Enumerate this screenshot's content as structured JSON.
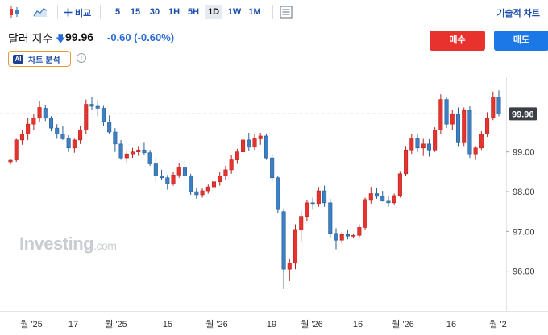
{
  "toolbar": {
    "compare_label": "비교",
    "timeframes": [
      "5",
      "15",
      "30",
      "1H",
      "5H",
      "1D",
      "1W",
      "1M"
    ],
    "selected_timeframe": "1D",
    "pro_chart_label": "기술적 차트",
    "icons": [
      "candlestick-icon",
      "area-chart-icon",
      "plus-icon",
      "indicator-panel-icon"
    ]
  },
  "instrument": {
    "name": "달러 지수",
    "price": "99.96",
    "change": "-0.60",
    "change_pct": "(-0.60%)",
    "direction_icon": "down-arrow-icon"
  },
  "actions": {
    "buy_label": "매수",
    "sell_label": "매도"
  },
  "ai": {
    "badge": "AI",
    "label": "차트 분석"
  },
  "info_glyph": "i",
  "watermark": {
    "brand": "Investing",
    "suffix": ".com"
  },
  "colors": {
    "up": "#e8322e",
    "down": "#3b7fc4",
    "accent": "#1e4fa8",
    "buy": "#e8322e",
    "sell": "#1b78e6"
  },
  "chart_data": {
    "type": "candlestick",
    "current_price": 99.96,
    "current_price_label": "99.96",
    "y_axis_ticks": [
      "99.00",
      "98.00",
      "97.00",
      "96.00"
    ],
    "y_axis_values": [
      99.0,
      98.0,
      97.0,
      96.0
    ],
    "ylim": [
      95.0,
      100.9
    ],
    "x_axis_labels": [
      "월 '25",
      "17",
      "월 '25",
      "15",
      "월 '26",
      "19",
      "월 '26",
      "16",
      "월 '26",
      "16",
      "월 '2"
    ],
    "candles": [
      [
        98.75,
        98.82,
        98.68,
        98.79
      ],
      [
        98.8,
        99.35,
        98.75,
        99.3
      ],
      [
        99.3,
        99.55,
        99.18,
        99.45
      ],
      [
        99.45,
        99.85,
        99.3,
        99.7
      ],
      [
        99.7,
        99.95,
        99.55,
        99.85
      ],
      [
        99.85,
        100.28,
        99.75,
        100.12
      ],
      [
        100.1,
        100.18,
        99.78,
        99.85
      ],
      [
        99.85,
        99.9,
        99.52,
        99.6
      ],
      [
        99.6,
        99.7,
        99.35,
        99.45
      ],
      [
        99.45,
        99.65,
        99.3,
        99.35
      ],
      [
        99.35,
        99.42,
        99.0,
        99.1
      ],
      [
        99.1,
        99.35,
        98.98,
        99.3
      ],
      [
        99.3,
        99.65,
        99.2,
        99.55
      ],
      [
        99.55,
        100.32,
        99.45,
        100.2
      ],
      [
        100.2,
        100.38,
        100.05,
        100.15
      ],
      [
        100.15,
        100.3,
        99.9,
        100.1
      ],
      [
        100.1,
        100.16,
        99.65,
        99.75
      ],
      [
        99.75,
        99.92,
        99.45,
        99.5
      ],
      [
        99.5,
        99.6,
        99.0,
        99.2
      ],
      [
        99.2,
        99.3,
        98.8,
        98.85
      ],
      [
        98.85,
        99.05,
        98.72,
        98.95
      ],
      [
        98.95,
        99.1,
        98.85,
        99.0
      ],
      [
        99.0,
        99.15,
        98.9,
        99.05
      ],
      [
        99.05,
        99.25,
        98.92,
        98.98
      ],
      [
        98.98,
        99.05,
        98.65,
        98.7
      ],
      [
        98.7,
        98.85,
        98.25,
        98.4
      ],
      [
        98.4,
        98.55,
        98.3,
        98.35
      ],
      [
        98.35,
        98.42,
        98.05,
        98.2
      ],
      [
        98.2,
        98.5,
        98.15,
        98.42
      ],
      [
        98.42,
        98.72,
        98.35,
        98.62
      ],
      [
        98.62,
        98.8,
        98.35,
        98.4
      ],
      [
        98.4,
        98.45,
        97.92,
        98.0
      ],
      [
        98.0,
        98.1,
        97.82,
        97.92
      ],
      [
        97.92,
        98.08,
        97.85,
        98.02
      ],
      [
        98.02,
        98.18,
        97.95,
        98.12
      ],
      [
        98.12,
        98.32,
        98.05,
        98.25
      ],
      [
        98.25,
        98.5,
        98.15,
        98.4
      ],
      [
        98.4,
        98.65,
        98.3,
        98.55
      ],
      [
        98.55,
        98.92,
        98.45,
        98.8
      ],
      [
        98.8,
        99.08,
        98.7,
        99.0
      ],
      [
        99.0,
        99.42,
        98.92,
        99.3
      ],
      [
        99.3,
        99.48,
        99.02,
        99.12
      ],
      [
        99.12,
        99.45,
        99.05,
        99.35
      ],
      [
        99.35,
        99.48,
        99.18,
        99.4
      ],
      [
        99.4,
        99.45,
        98.8,
        98.85
      ],
      [
        98.85,
        98.95,
        98.25,
        98.35
      ],
      [
        98.35,
        98.4,
        97.45,
        97.55
      ],
      [
        97.5,
        97.58,
        95.55,
        96.05
      ],
      [
        96.05,
        96.3,
        95.75,
        96.2
      ],
      [
        96.2,
        97.18,
        96.05,
        97.05
      ],
      [
        97.05,
        97.52,
        96.75,
        97.38
      ],
      [
        97.38,
        97.8,
        97.25,
        97.72
      ],
      [
        97.72,
        97.85,
        97.55,
        97.7
      ],
      [
        97.7,
        98.12,
        97.62,
        98.02
      ],
      [
        98.02,
        98.15,
        97.62,
        97.72
      ],
      [
        97.72,
        97.82,
        96.85,
        96.95
      ],
      [
        96.95,
        97.08,
        96.55,
        96.78
      ],
      [
        96.78,
        96.98,
        96.7,
        96.92
      ],
      [
        96.92,
        97.05,
        96.8,
        96.88
      ],
      [
        96.88,
        96.95,
        96.82,
        96.9
      ],
      [
        96.9,
        97.18,
        96.85,
        97.1
      ],
      [
        97.1,
        97.85,
        97.05,
        97.8
      ],
      [
        97.8,
        98.12,
        97.7,
        97.95
      ],
      [
        97.95,
        98.1,
        97.82,
        97.88
      ],
      [
        97.88,
        98.02,
        97.75,
        97.78
      ],
      [
        97.78,
        97.88,
        97.62,
        97.72
      ],
      [
        97.72,
        97.95,
        97.68,
        97.9
      ],
      [
        97.9,
        98.52,
        97.85,
        98.45
      ],
      [
        98.45,
        99.15,
        98.4,
        99.05
      ],
      [
        99.05,
        99.45,
        98.95,
        99.35
      ],
      [
        99.35,
        99.45,
        99.0,
        99.1
      ],
      [
        99.1,
        99.35,
        98.9,
        99.2
      ],
      [
        99.2,
        99.32,
        98.88,
        99.05
      ],
      [
        99.05,
        99.62,
        99.0,
        99.55
      ],
      [
        99.55,
        100.45,
        99.45,
        100.32
      ],
      [
        100.32,
        100.38,
        99.6,
        99.7
      ],
      [
        99.7,
        100.05,
        99.55,
        99.95
      ],
      [
        99.95,
        100.12,
        99.15,
        99.25
      ],
      [
        99.25,
        100.12,
        99.15,
        100.05
      ],
      [
        100.05,
        100.15,
        98.85,
        98.95
      ],
      [
        98.95,
        99.15,
        98.8,
        99.1
      ],
      [
        99.1,
        99.52,
        99.05,
        99.45
      ],
      [
        99.45,
        100.0,
        99.38,
        99.85
      ],
      [
        99.85,
        100.52,
        99.8,
        100.38
      ],
      [
        100.38,
        100.55,
        99.9,
        99.96
      ]
    ]
  }
}
